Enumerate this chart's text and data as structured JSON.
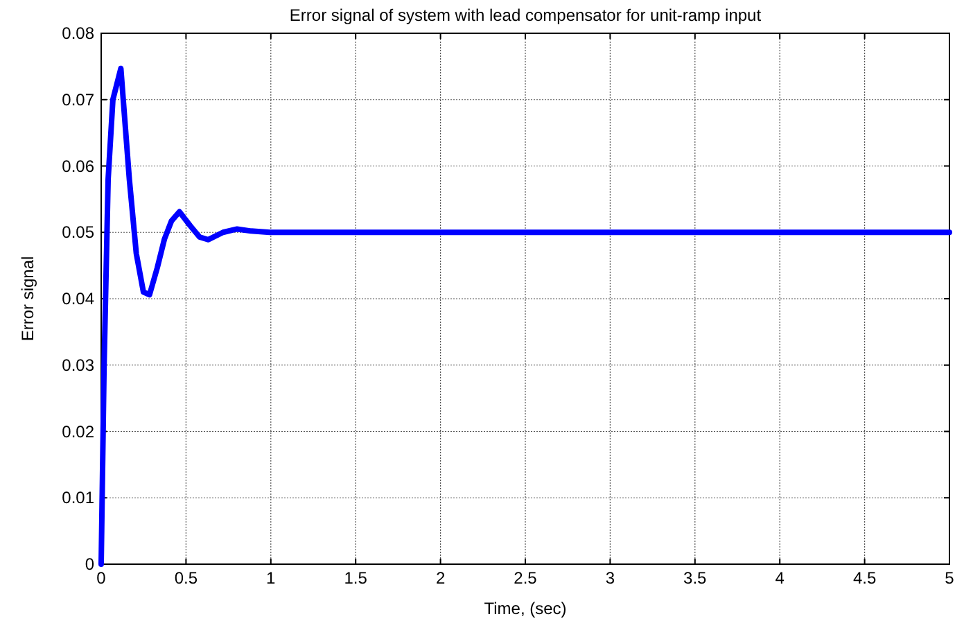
{
  "chart_data": {
    "type": "line",
    "title": "Error signal of system with lead compensator for unit-ramp input",
    "xlabel": "Time, (sec)",
    "ylabel": "Error signal",
    "xlim": [
      0,
      5
    ],
    "ylim": [
      0,
      0.08
    ],
    "xticks": [
      0,
      0.5,
      1,
      1.5,
      2,
      2.5,
      3,
      3.5,
      4,
      4.5,
      5
    ],
    "yticks": [
      0,
      0.01,
      0.02,
      0.03,
      0.04,
      0.05,
      0.06,
      0.07,
      0.08
    ],
    "grid": true,
    "line_style": "solid",
    "series": [
      {
        "color": "#0000ff",
        "x": [
          0,
          0.017,
          0.041,
          0.069,
          0.116,
          0.166,
          0.207,
          0.249,
          0.285,
          0.331,
          0.373,
          0.414,
          0.461,
          0.525,
          0.58,
          0.63,
          0.718,
          0.801,
          0.884,
          0.994,
          5
        ],
        "values": [
          0,
          0.0298,
          0.058,
          0.07,
          0.0747,
          0.058,
          0.0468,
          0.041,
          0.0406,
          0.0447,
          0.049,
          0.0517,
          0.0531,
          0.051,
          0.0493,
          0.0489,
          0.05,
          0.0505,
          0.0502,
          0.05,
          0.05
        ]
      }
    ]
  }
}
